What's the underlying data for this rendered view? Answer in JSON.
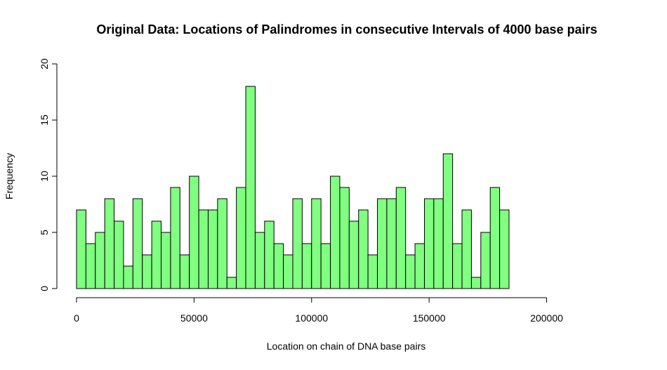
{
  "chart_data": {
    "type": "bar",
    "title": "Original Data: Locations of Palindromes in consecutive Intervals of 4000 base pairs",
    "xlabel": "Location on chain of DNA base pairs",
    "ylabel": "Frequency",
    "bin_width": 4000,
    "x_start": 0,
    "values": [
      7,
      4,
      5,
      8,
      6,
      2,
      8,
      3,
      6,
      5,
      9,
      3,
      10,
      7,
      7,
      8,
      1,
      9,
      18,
      5,
      6,
      4,
      3,
      8,
      4,
      8,
      4,
      10,
      9,
      6,
      7,
      3,
      8,
      8,
      9,
      3,
      4,
      8,
      8,
      12,
      4,
      7,
      1,
      5,
      9,
      7
    ],
    "xlim": [
      0,
      230000
    ],
    "ylim": [
      0,
      20
    ],
    "x_ticks": [
      0,
      50000,
      100000,
      150000,
      200000
    ],
    "x_tick_labels": [
      "0",
      "50000",
      "100000",
      "150000",
      "200000"
    ],
    "y_ticks": [
      0,
      5,
      10,
      15,
      20
    ],
    "y_tick_labels": [
      "0",
      "5",
      "10",
      "15",
      "20"
    ],
    "bar_fill": "#80ff80",
    "bar_stroke": "#000000",
    "grid": false
  }
}
